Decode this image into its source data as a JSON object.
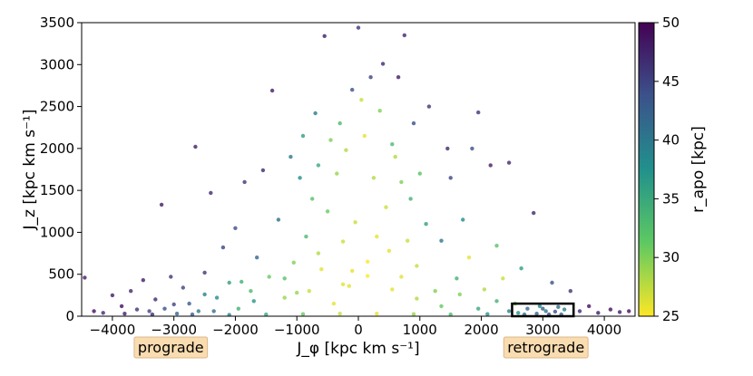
{
  "chart_data": {
    "type": "scatter",
    "title": "",
    "xlabel": "J_φ [kpc km s⁻¹]",
    "ylabel": "J_z [kpc km s⁻¹]",
    "xlim": [
      -4500,
      4500
    ],
    "ylim": [
      0,
      3500
    ],
    "xticks": [
      -4000,
      -3000,
      -2000,
      -1000,
      0,
      1000,
      2000,
      3000,
      4000
    ],
    "yticks": [
      0,
      500,
      1000,
      1500,
      2000,
      2500,
      3000,
      3500
    ],
    "grid": false,
    "colorbar": {
      "label": "r_apo [kpc]",
      "range": [
        25,
        50
      ],
      "ticks": [
        25,
        30,
        35,
        40,
        45,
        50
      ],
      "colormap": "viridis_r"
    },
    "annotations": [
      {
        "text": "prograde",
        "x": -3050,
        "bg": "#f9dcb0"
      },
      {
        "text": "retrograde",
        "x": 3050,
        "bg": "#f9dcb0"
      }
    ],
    "selection_box": {
      "x": [
        2500,
        3500
      ],
      "y": [
        0,
        150
      ],
      "color": "#000000"
    },
    "series": [
      {
        "points": [
          [
            -4450,
            460,
            48
          ],
          [
            -4300,
            60,
            49
          ],
          [
            -4150,
            40,
            47
          ],
          [
            -4000,
            250,
            48
          ],
          [
            -3850,
            120,
            49
          ],
          [
            -3700,
            300,
            47
          ],
          [
            -3600,
            80,
            46
          ],
          [
            -3500,
            430,
            48
          ],
          [
            -3400,
            60,
            45
          ],
          [
            -3300,
            200,
            47
          ],
          [
            -3200,
            1330,
            48
          ],
          [
            -3150,
            90,
            44
          ],
          [
            -3050,
            470,
            46
          ],
          [
            -2950,
            30,
            42
          ],
          [
            -2850,
            340,
            45
          ],
          [
            -2750,
            150,
            43
          ],
          [
            -2650,
            2020,
            48
          ],
          [
            -2600,
            60,
            40
          ],
          [
            -2500,
            520,
            46
          ],
          [
            -2400,
            1470,
            47
          ],
          [
            -2300,
            220,
            38
          ],
          [
            -2200,
            820,
            45
          ],
          [
            -2100,
            400,
            36
          ],
          [
            -2000,
            1050,
            44
          ],
          [
            -1950,
            90,
            34
          ],
          [
            -1850,
            1600,
            46
          ],
          [
            -1750,
            300,
            33
          ],
          [
            -1650,
            700,
            42
          ],
          [
            -1550,
            1740,
            47
          ],
          [
            -1450,
            470,
            31
          ],
          [
            -1400,
            2690,
            48
          ],
          [
            -1300,
            1150,
            41
          ],
          [
            -1200,
            220,
            29
          ],
          [
            -1100,
            1900,
            40
          ],
          [
            -1050,
            640,
            30
          ],
          [
            -950,
            1650,
            38
          ],
          [
            -900,
            2150,
            36
          ],
          [
            -850,
            950,
            33
          ],
          [
            -800,
            300,
            27
          ],
          [
            -750,
            1400,
            32
          ],
          [
            -700,
            2420,
            40
          ],
          [
            -650,
            1800,
            35
          ],
          [
            -600,
            560,
            26
          ],
          [
            -550,
            3340,
            48
          ],
          [
            -500,
            1250,
            31
          ],
          [
            -450,
            2100,
            30
          ],
          [
            -400,
            150,
            26
          ],
          [
            -350,
            1700,
            29
          ],
          [
            -300,
            2300,
            33
          ],
          [
            -250,
            890,
            27
          ],
          [
            -200,
            1980,
            28
          ],
          [
            -150,
            360,
            26
          ],
          [
            -100,
            2700,
            44
          ],
          [
            -50,
            1120,
            27
          ],
          [
            0,
            3440,
            46
          ],
          [
            50,
            2580,
            27
          ],
          [
            100,
            2150,
            26
          ],
          [
            150,
            480,
            25
          ],
          [
            200,
            2850,
            45
          ],
          [
            250,
            1650,
            28
          ],
          [
            300,
            950,
            26
          ],
          [
            350,
            2450,
            30
          ],
          [
            400,
            3010,
            47
          ],
          [
            450,
            1300,
            27
          ],
          [
            500,
            780,
            26
          ],
          [
            550,
            2050,
            33
          ],
          [
            600,
            1900,
            28
          ],
          [
            650,
            2850,
            48
          ],
          [
            700,
            1600,
            30
          ],
          [
            750,
            3350,
            47
          ],
          [
            800,
            900,
            27
          ],
          [
            850,
            1400,
            34
          ],
          [
            900,
            2300,
            44
          ],
          [
            950,
            600,
            27
          ],
          [
            1000,
            1700,
            32
          ],
          [
            1100,
            1100,
            36
          ],
          [
            1150,
            2500,
            46
          ],
          [
            1250,
            300,
            30
          ],
          [
            1350,
            900,
            40
          ],
          [
            1450,
            2000,
            47
          ],
          [
            1500,
            1650,
            45
          ],
          [
            1600,
            450,
            34
          ],
          [
            1700,
            1150,
            38
          ],
          [
            1800,
            700,
            26
          ],
          [
            1850,
            2000,
            44
          ],
          [
            1950,
            2430,
            46
          ],
          [
            2050,
            320,
            28
          ],
          [
            2150,
            1800,
            48
          ],
          [
            2250,
            840,
            32
          ],
          [
            2350,
            450,
            27
          ],
          [
            2450,
            1830,
            47
          ],
          [
            2550,
            150,
            30
          ],
          [
            2650,
            570,
            36
          ],
          [
            2750,
            90,
            42
          ],
          [
            2850,
            1230,
            47
          ],
          [
            2950,
            120,
            38
          ],
          [
            3050,
            60,
            40
          ],
          [
            3150,
            400,
            44
          ],
          [
            3250,
            110,
            41
          ],
          [
            3350,
            80,
            39
          ],
          [
            3450,
            300,
            46
          ],
          [
            3600,
            60,
            47
          ],
          [
            3750,
            120,
            49
          ],
          [
            3900,
            40,
            48
          ],
          [
            4100,
            80,
            49
          ],
          [
            4250,
            50,
            48
          ],
          [
            4400,
            60,
            49
          ],
          [
            -3350,
            20,
            47
          ],
          [
            -2700,
            20,
            43
          ],
          [
            -2100,
            15,
            39
          ],
          [
            -1500,
            20,
            35
          ],
          [
            -900,
            25,
            31
          ],
          [
            -300,
            30,
            27
          ],
          [
            300,
            30,
            26
          ],
          [
            900,
            25,
            29
          ],
          [
            1500,
            20,
            33
          ],
          [
            2100,
            25,
            37
          ],
          [
            2700,
            20,
            41
          ],
          [
            3300,
            20,
            43
          ],
          [
            -3800,
            30,
            48
          ],
          [
            -3000,
            140,
            45
          ],
          [
            -2350,
            60,
            41
          ],
          [
            -1700,
            180,
            37
          ],
          [
            -1200,
            450,
            32
          ],
          [
            -650,
            750,
            28
          ],
          [
            -250,
            380,
            26
          ],
          [
            150,
            650,
            25
          ],
          [
            550,
            320,
            26
          ],
          [
            950,
            210,
            28
          ],
          [
            1350,
            120,
            31
          ],
          [
            1950,
            90,
            35
          ],
          [
            2450,
            60,
            39
          ],
          [
            2900,
            30,
            42
          ],
          [
            3200,
            55,
            44
          ],
          [
            -2500,
            260,
            39
          ],
          [
            -1900,
            410,
            34
          ],
          [
            -1000,
            280,
            29
          ],
          [
            -100,
            540,
            26
          ],
          [
            700,
            470,
            26
          ],
          [
            1650,
            260,
            30
          ],
          [
            2250,
            180,
            34
          ],
          [
            2600,
            40,
            37
          ],
          [
            3000,
            90,
            43
          ],
          [
            3100,
            20,
            45
          ]
        ]
      }
    ]
  }
}
